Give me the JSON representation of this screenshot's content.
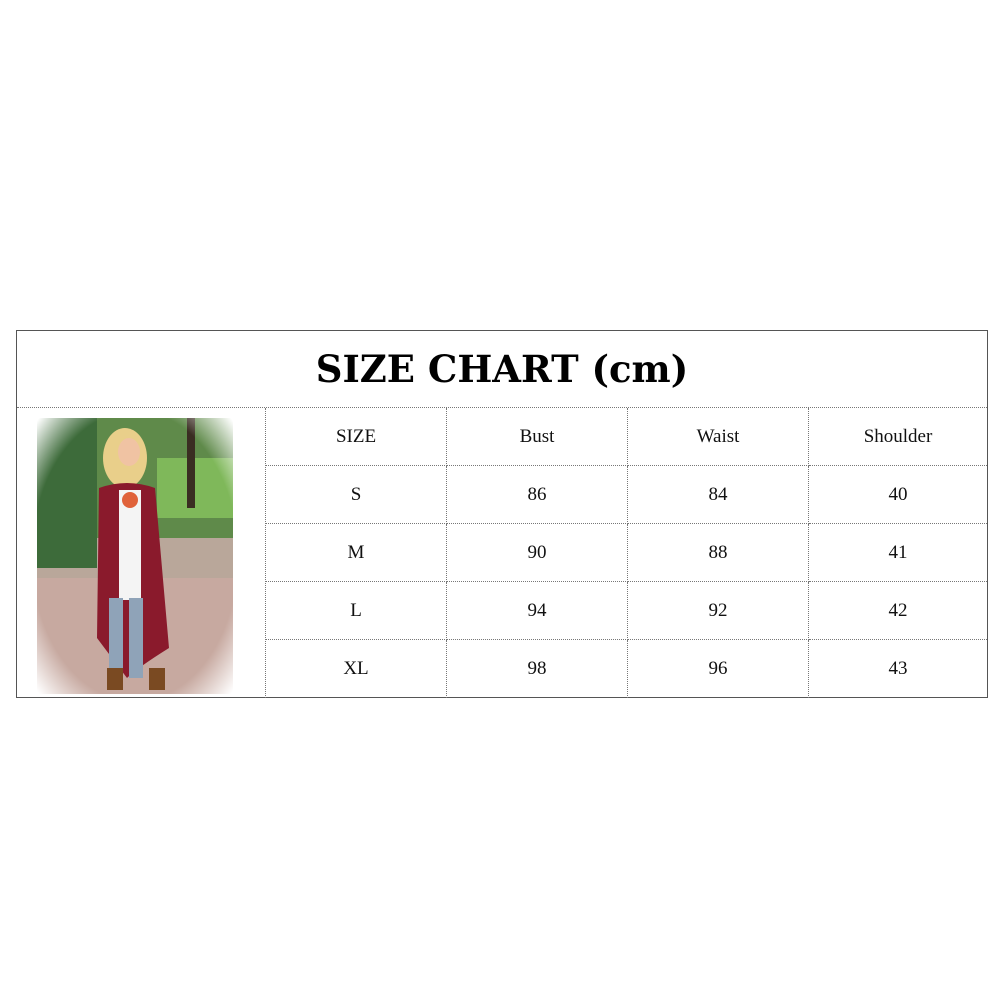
{
  "title": "SIZE CHART (cm)",
  "table": {
    "headers": [
      "SIZE",
      "Bust",
      "Waist",
      "Shoulder"
    ],
    "rows": [
      [
        "S",
        "86",
        "84",
        "40"
      ],
      [
        "M",
        "90",
        "88",
        "41"
      ],
      [
        "L",
        "94",
        "92",
        "42"
      ],
      [
        "XL",
        "98",
        "96",
        "43"
      ]
    ]
  },
  "photo": {
    "subject": "model-wearing-cardigan",
    "colors": {
      "cardigan": "#8a1a2c",
      "jeans": "#8fa3b8",
      "grass": "#6aa84f"
    }
  }
}
